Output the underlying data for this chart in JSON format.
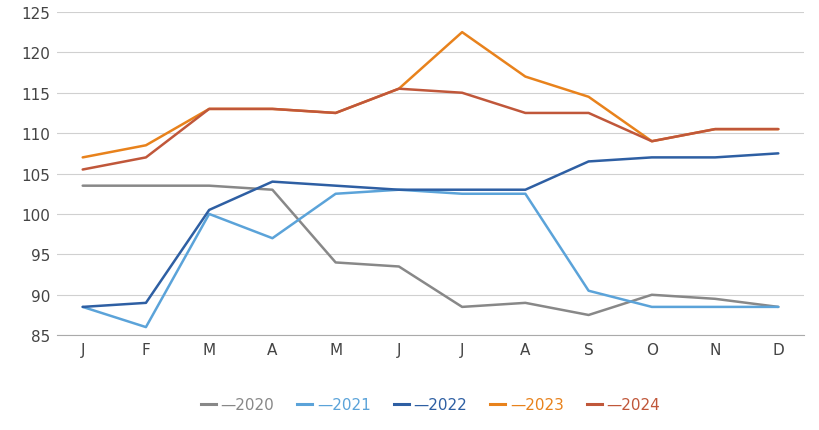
{
  "months": [
    "J",
    "F",
    "M",
    "A",
    "M",
    "J",
    "J",
    "A",
    "S",
    "O",
    "N",
    "D"
  ],
  "series": {
    "2020": [
      103.5,
      103.5,
      103.5,
      103.0,
      94.0,
      93.5,
      88.5,
      89.0,
      87.5,
      90.0,
      89.5,
      88.5
    ],
    "2021": [
      88.5,
      86.0,
      100.0,
      97.0,
      102.5,
      103.0,
      102.5,
      102.5,
      90.5,
      88.5,
      88.5,
      88.5
    ],
    "2022": [
      88.5,
      89.0,
      100.5,
      104.0,
      103.5,
      103.0,
      103.0,
      103.0,
      106.5,
      107.0,
      107.0,
      107.5
    ],
    "2023": [
      107.0,
      108.5,
      113.0,
      113.0,
      112.5,
      115.5,
      122.5,
      117.0,
      114.5,
      109.0,
      110.5,
      110.5
    ],
    "2024": [
      105.5,
      107.0,
      113.0,
      113.0,
      112.5,
      115.5,
      115.0,
      112.5,
      112.5,
      109.0,
      110.5,
      110.5
    ]
  },
  "colors": {
    "2020": "#888888",
    "2021": "#5BA3D9",
    "2022": "#2E5FA3",
    "2023": "#E8821C",
    "2024": "#C0573A"
  },
  "ylim": [
    85,
    125
  ],
  "yticks": [
    85,
    90,
    95,
    100,
    105,
    110,
    115,
    120,
    125
  ],
  "background_color": "#ffffff",
  "grid_color": "#d0d0d0",
  "linewidth": 1.8
}
